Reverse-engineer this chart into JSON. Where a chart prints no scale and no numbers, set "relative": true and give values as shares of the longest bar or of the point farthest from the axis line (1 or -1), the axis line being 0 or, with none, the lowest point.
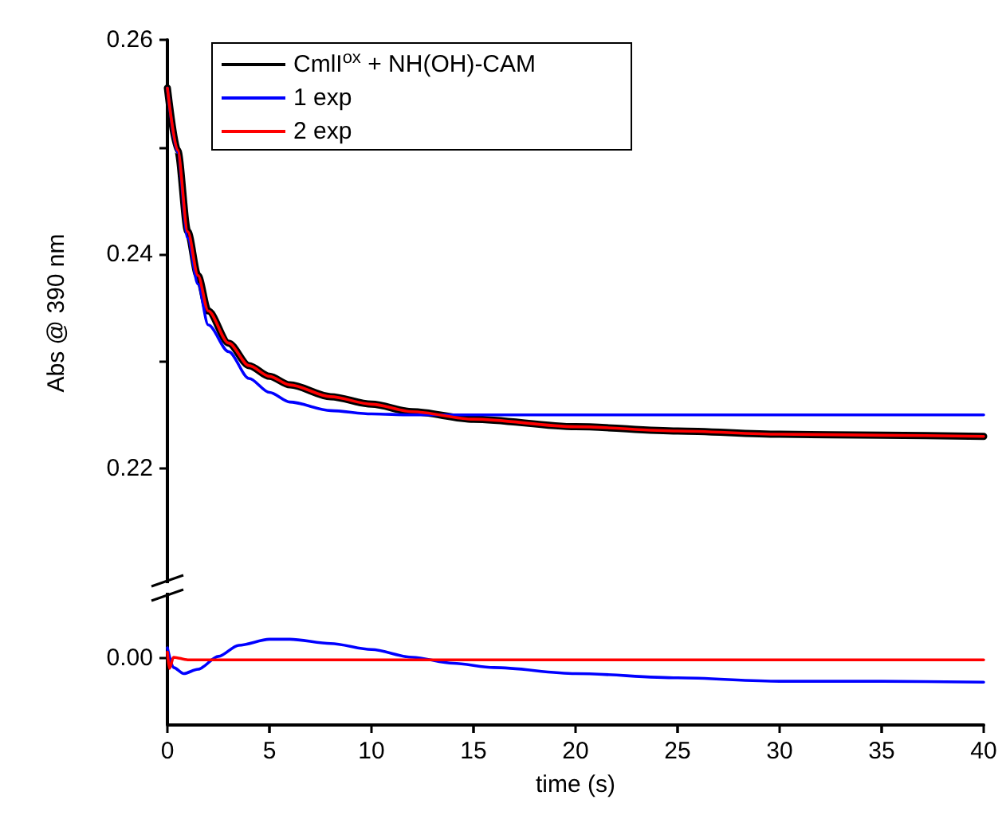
{
  "chart_data": [
    {
      "type": "line",
      "ylabel": "Abs @ 390 nm",
      "xlim": [
        0,
        40
      ],
      "ylim": [
        0.209,
        0.26
      ],
      "yticks": [
        0.22,
        {
          "value": 0.23,
          "label": null
        },
        0.24,
        {
          "value": 0.25,
          "label": null
        },
        0.26
      ],
      "tick_labels": "y",
      "legend": "top left",
      "grid": false,
      "marker": "none",
      "line_style": "solid",
      "series": [
        {
          "name": "CmlI$^{ox}$ + NH(OH)-CAM",
          "color": "#000000",
          "x": [
            0,
            0.5,
            1,
            1.5,
            2,
            3,
            4,
            5,
            6,
            8,
            10,
            12,
            15,
            20,
            25,
            30,
            35,
            40
          ],
          "values": [
            0.2555,
            0.2497,
            0.2421,
            0.238,
            0.2347,
            0.2317,
            0.2296,
            0.2286,
            0.2278,
            0.2267,
            0.226,
            0.2253,
            0.2246,
            0.2239,
            0.2235,
            0.2232,
            0.2231,
            0.223
          ]
        },
        {
          "name": "1 exp",
          "color": "#0000ff",
          "x": [
            0,
            0.5,
            1,
            1.5,
            2,
            3,
            4,
            5,
            6,
            8,
            10,
            12,
            14,
            20,
            25,
            30,
            35,
            40
          ],
          "values": [
            0.2555,
            0.2495,
            0.2415,
            0.2372,
            0.2334,
            0.2309,
            0.2284,
            0.2271,
            0.2262,
            0.2254,
            0.2251,
            0.225,
            0.225,
            0.225,
            0.225,
            0.225,
            0.225,
            0.225
          ]
        },
        {
          "name": "2 exp",
          "color": "#ff0000",
          "x": [
            0,
            0.5,
            1,
            1.5,
            2,
            3,
            4,
            5,
            6,
            8,
            10,
            12,
            15,
            20,
            25,
            30,
            35,
            40
          ],
          "values": [
            0.2555,
            0.2497,
            0.2421,
            0.238,
            0.2347,
            0.2317,
            0.2296,
            0.2286,
            0.2278,
            0.2267,
            0.226,
            0.2253,
            0.2246,
            0.2239,
            0.2235,
            0.2232,
            0.2231,
            0.223
          ]
        }
      ]
    },
    {
      "type": "line",
      "xlabel": "time (s)",
      "xlim": [
        0,
        40
      ],
      "xticks": [
        0,
        5,
        10,
        15,
        20,
        25,
        30,
        35,
        40
      ],
      "relative": true,
      "annotations": [
        "0.00"
      ],
      "legend": false,
      "grid": false,
      "marker": "none",
      "line_style": "solid",
      "series": [
        {
          "color": "#0000ff",
          "x": [
            0,
            0.3,
            0.8,
            1.5,
            2.5,
            3.5,
            5,
            6,
            8,
            10,
            12,
            14,
            16,
            20,
            25,
            30,
            35,
            40
          ],
          "values": [
            0.9,
            0.67,
            0.6,
            0.65,
            0.8,
            0.93,
            1,
            1,
            0.95,
            0.88,
            0.79,
            0.72,
            0.67,
            0.6,
            0.55,
            0.51,
            0.51,
            0.5
          ]
        },
        {
          "color": "#ff0000",
          "x": [
            0,
            0.1,
            0.3,
            1,
            5,
            10,
            15,
            20,
            25,
            30,
            35,
            40
          ],
          "values": [
            0.85,
            0.66,
            0.79,
            0.76,
            0.76,
            0.76,
            0.76,
            0.76,
            0.76,
            0.76,
            0.76,
            0.76
          ]
        }
      ]
    }
  ]
}
